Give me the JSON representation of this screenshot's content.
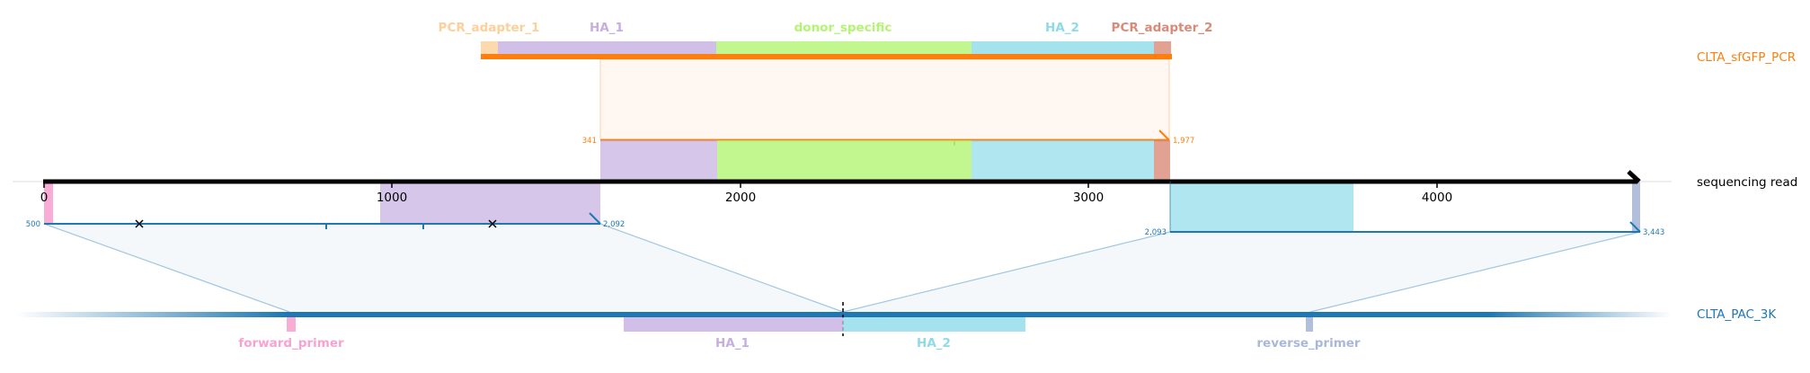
{
  "tracks": {
    "top_name": "CLTA_sfGFP_PCR",
    "middle_name": "sequencing read",
    "bottom_name": "CLTA_PAC_3K"
  },
  "colors": {
    "pcr_adapter_1": "#fdcf9a",
    "ha_1": "#c5afe1",
    "donor_specific": "#b3f573",
    "ha_2": "#8ddbe9",
    "pcr_adapter_2": "#d98a78",
    "forward_primer": "#f7a3d2",
    "reverse_primer": "#a8b8d8",
    "top_ref": "#ff7f0e",
    "bottom_ref": "#1f77b4",
    "read": "#000000"
  },
  "read_axis": {
    "ticks": [
      "0",
      "1000",
      "2000",
      "3000",
      "4000"
    ]
  },
  "top_features": [
    {
      "key": "pcr_adapter_1",
      "label": "PCR_adapter_1"
    },
    {
      "key": "ha_1",
      "label": "HA_1"
    },
    {
      "key": "donor_specific",
      "label": "donor_specific"
    },
    {
      "key": "ha_2",
      "label": "HA_2"
    },
    {
      "key": "pcr_adapter_2",
      "label": "PCR_adapter_2"
    }
  ],
  "bottom_features": [
    {
      "key": "forward_primer",
      "label": "forward_primer"
    },
    {
      "key": "ha_1",
      "label": "HA_1"
    },
    {
      "key": "ha_2",
      "label": "HA_2"
    },
    {
      "key": "reverse_primer",
      "label": "reverse_primer"
    }
  ],
  "alignments": {
    "top": {
      "start_label": "341",
      "end_label": "1,977"
    },
    "bottom_left": {
      "start_label": "500",
      "end_label": "2,092"
    },
    "bottom_right": {
      "start_label": "2,093",
      "end_label": "3,443"
    }
  }
}
